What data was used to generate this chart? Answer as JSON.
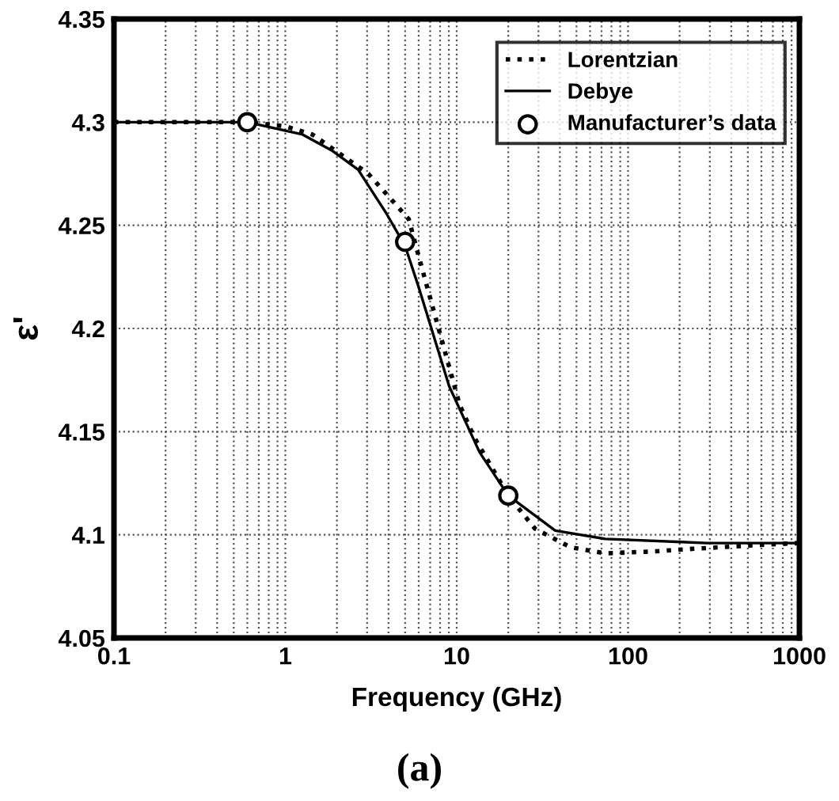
{
  "chart_data": {
    "type": "line",
    "xlabel": "Frequency (GHz)",
    "ylabel": "ε'",
    "annotations": [
      "(a)"
    ],
    "log": "x",
    "xlim": [
      0.1,
      1000
    ],
    "xticks": [
      0.1,
      1,
      10,
      100,
      1000
    ],
    "ylim": [
      4.05,
      4.35
    ],
    "yticks": [
      4.05,
      4.1,
      4.15,
      4.2,
      4.25,
      4.3,
      4.35
    ],
    "grid": true,
    "legend": "top right",
    "series": [
      {
        "name": "Lorentzian",
        "color": "#000000",
        "line_style": "dotted",
        "marker": "none",
        "x": [
          0.1,
          0.6,
          1,
          1.44,
          3.05,
          5.25,
          6.0,
          10.4,
          12.7,
          20,
          28.6,
          46,
          73.6,
          146,
          218,
          566,
          1000
        ],
        "values": [
          4.3,
          4.3,
          4.298,
          4.294,
          4.275,
          4.253,
          4.235,
          4.163,
          4.147,
          4.119,
          4.103,
          4.094,
          4.091,
          4.092,
          4.093,
          4.095,
          4.096
        ]
      },
      {
        "name": "Debye",
        "color": "#000000",
        "line_style": "solid",
        "marker": "none",
        "x": [
          0.1,
          0.6,
          1.26,
          1.89,
          2.66,
          3.87,
          5.0,
          6.0,
          9.04,
          13.6,
          20,
          37.6,
          73.6,
          204,
          288,
          1000
        ],
        "values": [
          4.3,
          4.3,
          4.294,
          4.286,
          4.277,
          4.256,
          4.24,
          4.22,
          4.172,
          4.14,
          4.119,
          4.102,
          4.098,
          4.0965,
          4.096,
          4.096
        ]
      },
      {
        "name": "Manufacturer’s data",
        "type": "scatter",
        "color": "#000000",
        "marker": "circle",
        "x": [
          0.6,
          5,
          20
        ],
        "values": [
          4.3,
          4.242,
          4.119
        ]
      }
    ]
  }
}
